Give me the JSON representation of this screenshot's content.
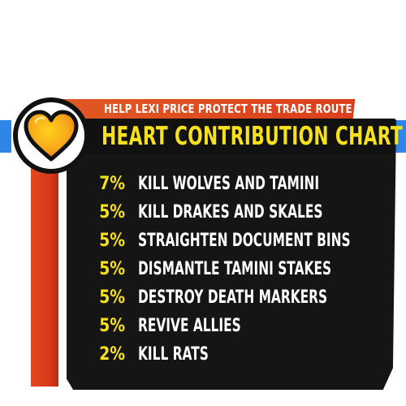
{
  "header": {
    "subtitle": "HELP LEXI PRICE PROTECT THE TRADE ROUTE",
    "title": "HEART CONTRIBUTION CHART"
  },
  "colors": {
    "accent_yellow": "#f7e11a",
    "panel_black": "#151515",
    "banner_red": "#dc3e1c",
    "side_blue": "#2f86e8",
    "heart_orange": "#f28a18"
  },
  "emblem": {
    "icon": "heart-icon"
  },
  "contributions": [
    {
      "percent": "7%",
      "task": "KILL WOLVES AND TAMINI"
    },
    {
      "percent": "5%",
      "task": "KILL DRAKES AND SKALES"
    },
    {
      "percent": "5%",
      "task": "STRAIGHTEN DOCUMENT BINS"
    },
    {
      "percent": "5%",
      "task": "DISMANTLE TAMINI STAKES"
    },
    {
      "percent": "5%",
      "task": "DESTROY DEATH MARKERS"
    },
    {
      "percent": "5%",
      "task": "REVIVE ALLIES"
    },
    {
      "percent": "2%",
      "task": "KILL RATS"
    }
  ]
}
